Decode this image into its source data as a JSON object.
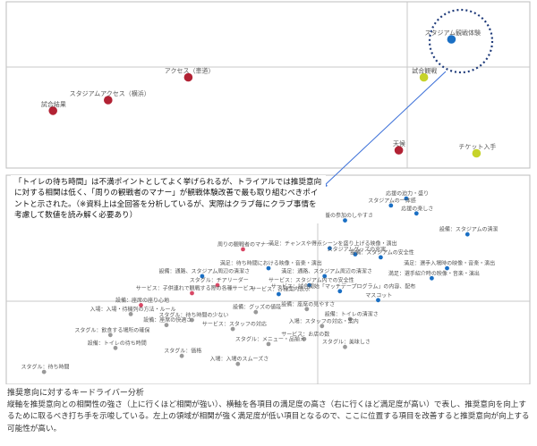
{
  "chart_data": [
    {
      "type": "scatter",
      "title": "",
      "xlabel": "",
      "ylabel": "",
      "xlim": [
        0,
        100
      ],
      "ylim": [
        0,
        100
      ],
      "grid": false,
      "points": [
        {
          "label": "スタジアム観戦体験",
          "x": 86.5,
          "y": 80.0,
          "color": "#1a6fc4"
        },
        {
          "label": "試合観戦",
          "x": 81.0,
          "y": 55.0,
          "color": "#c6d32a"
        },
        {
          "label": "アクセス（車道）",
          "x": 34.0,
          "y": 55.0,
          "color": "#b22234"
        },
        {
          "label": "スタジアムアクセス（横浜）",
          "x": 18.0,
          "y": 40.0,
          "color": "#b22234"
        },
        {
          "label": "試合結果",
          "x": 7.0,
          "y": 33.0,
          "color": "#b22234"
        },
        {
          "label": "天候",
          "x": 76.0,
          "y": 7.0,
          "color": "#b22234"
        },
        {
          "label": "チケット入手",
          "x": 91.5,
          "y": 5.0,
          "color": "#c6d32a"
        }
      ]
    },
    {
      "type": "scatter",
      "title": "",
      "xlabel": "",
      "ylabel": "",
      "xlim": [
        0,
        100
      ],
      "ylim": [
        0,
        100
      ],
      "grid": false,
      "points": [
        {
          "label": "応援の迫力・盛り",
          "x": 77.0,
          "y": 91.0,
          "color": "#1a6fc4"
        },
        {
          "label": "スタジアムの一体感",
          "x": 74.0,
          "y": 87.5,
          "color": "#1a6fc4"
        },
        {
          "label": "応援の楽しさ",
          "x": 79.0,
          "y": 83.5,
          "color": "#1a6fc4"
        },
        {
          "label": "応援の参加のしやすさ",
          "x": 65.0,
          "y": 80.0,
          "color": "#1a6fc4"
        },
        {
          "label": "設備：スタジアムの清潔",
          "x": 89.0,
          "y": 73.0,
          "color": "#1a6fc4"
        },
        {
          "label": "満足：チャンスや得点シーンを盛り上げる映像・演出",
          "x": 62.0,
          "y": 66.0,
          "color": "#1a6fc4"
        },
        {
          "label": "スタジアムグッズの充実",
          "x": 67.0,
          "y": 63.0,
          "color": "#1a6fc4"
        },
        {
          "label": "設備：スタジアムの安全性",
          "x": 72.0,
          "y": 61.5,
          "color": "#1a6fc4"
        },
        {
          "label": "周りの観戦者のマナー",
          "x": 45.0,
          "y": 65.5,
          "color": "#d94966"
        },
        {
          "label": "満足：待ち時間における映像・音楽・演出",
          "x": 50.0,
          "y": 56.0,
          "color": "#1a6fc4"
        },
        {
          "label": "満足：選手入場時の映像・音楽・演出",
          "x": 85.0,
          "y": 56.0,
          "color": "#1a6fc4"
        },
        {
          "label": "設備：通路、スタジアム周辺の清潔さ",
          "x": 37.0,
          "y": 52.0,
          "color": "#1a6fc4"
        },
        {
          "label": "満足：通路、スタジアム周辺の清潔さ",
          "x": 61.0,
          "y": 52.0,
          "color": "#1a6fc4"
        },
        {
          "label": "サービス：スタジアム内での安全性",
          "x": 58.0,
          "y": 47.5,
          "color": "#1a6fc4"
        },
        {
          "label": "満足：選手紹介時の映像・音楽・演出",
          "x": 82.0,
          "y": 51.0,
          "color": "#1a6fc4"
        },
        {
          "label": "スタグル：チアリーダー",
          "x": 40.0,
          "y": 47.5,
          "color": "#d94966"
        },
        {
          "label": "サービス：試合開始「マッチデープログラム」の内容、配布",
          "x": 64.0,
          "y": 44.5,
          "color": "#1a6fc4"
        },
        {
          "label": "サービス：各種案内表示",
          "x": 52.0,
          "y": 43.0,
          "color": "#1a6fc4"
        },
        {
          "label": "サービス：子供連れで観戦する際の各種サービス",
          "x": 35.0,
          "y": 43.5,
          "color": "#d94966"
        },
        {
          "label": "マスコット",
          "x": 71.5,
          "y": 40.0,
          "color": "#1a6fc4"
        },
        {
          "label": "設備：座席の座り心地",
          "x": 25.0,
          "y": 37.5,
          "color": "#d94966"
        },
        {
          "label": "入場：入場・待機列の方法・ルール",
          "x": 23.0,
          "y": 33.0,
          "color": "#999999"
        },
        {
          "label": "設備：座席の見やすさ",
          "x": 57.5,
          "y": 35.5,
          "color": "#999999"
        },
        {
          "label": "設備：グッズの値段",
          "x": 47.5,
          "y": 34.0,
          "color": "#999999"
        },
        {
          "label": "設備：トイレの清潔さ",
          "x": 66.0,
          "y": 30.5,
          "color": "#999999"
        },
        {
          "label": "スタグル：待ち時間の少ない",
          "x": 35.0,
          "y": 30.0,
          "color": "#999999"
        },
        {
          "label": "入場：スタッフの対応・案内",
          "x": 60.5,
          "y": 27.0,
          "color": "#999999"
        },
        {
          "label": "サービス：スタッフの対応",
          "x": 43.0,
          "y": 25.5,
          "color": "#999999"
        },
        {
          "label": "設備：座席の快適さ",
          "x": 30.0,
          "y": 27.5,
          "color": "#999999"
        },
        {
          "label": "スタグル：飲食する場所の確保",
          "x": 19.0,
          "y": 22.5,
          "color": "#999999"
        },
        {
          "label": "サービス：お店の数",
          "x": 57.0,
          "y": 20.5,
          "color": "#999999"
        },
        {
          "label": "スタグル：メニュー・品揃え",
          "x": 50.0,
          "y": 18.0,
          "color": "#999999"
        },
        {
          "label": "設備：トイレの待ち時間",
          "x": 20.0,
          "y": 16.0,
          "color": "#999999"
        },
        {
          "label": "スタグル：美味しさ",
          "x": 65.0,
          "y": 16.5,
          "color": "#999999"
        },
        {
          "label": "スタグル：価格",
          "x": 33.0,
          "y": 12.0,
          "color": "#999999"
        },
        {
          "label": "入場：入場のスムーズさ",
          "x": 44.0,
          "y": 8.0,
          "color": "#999999"
        },
        {
          "label": "スタグル：待ち時間",
          "x": 6.0,
          "y": 4.0,
          "color": "#999999"
        }
      ]
    }
  ],
  "annotation": {
    "callout_text": "「トイレの待ち時間」は不満ポイントとしてよく挙げられるが、トライアルでは推奨意向に対する相関は低く、「周りの観戦者のマナー」が観戦体験改善で最も取り組むべきポイントと示された。（※資料上は全回答を分析しているが、実際はクラブ毎にクラブ事情を考慮して数値を読み解く必要あり）"
  },
  "caption": {
    "title": "推奨意向に対するキードライバー分析",
    "body": "縦軸を推奨意向との相関性の強さ（上に行くほど相関が強い）、横軸を各項目の満足度の高さ（右に行くほど満足度が高い）で表し、推奨意向を向上するために取るべき打ち手を示唆している。左上の領域が相関が強く満足度が低い項目となるので、ここに位置する項目を改善すると推奨意向が向上する可能性が高い。"
  }
}
